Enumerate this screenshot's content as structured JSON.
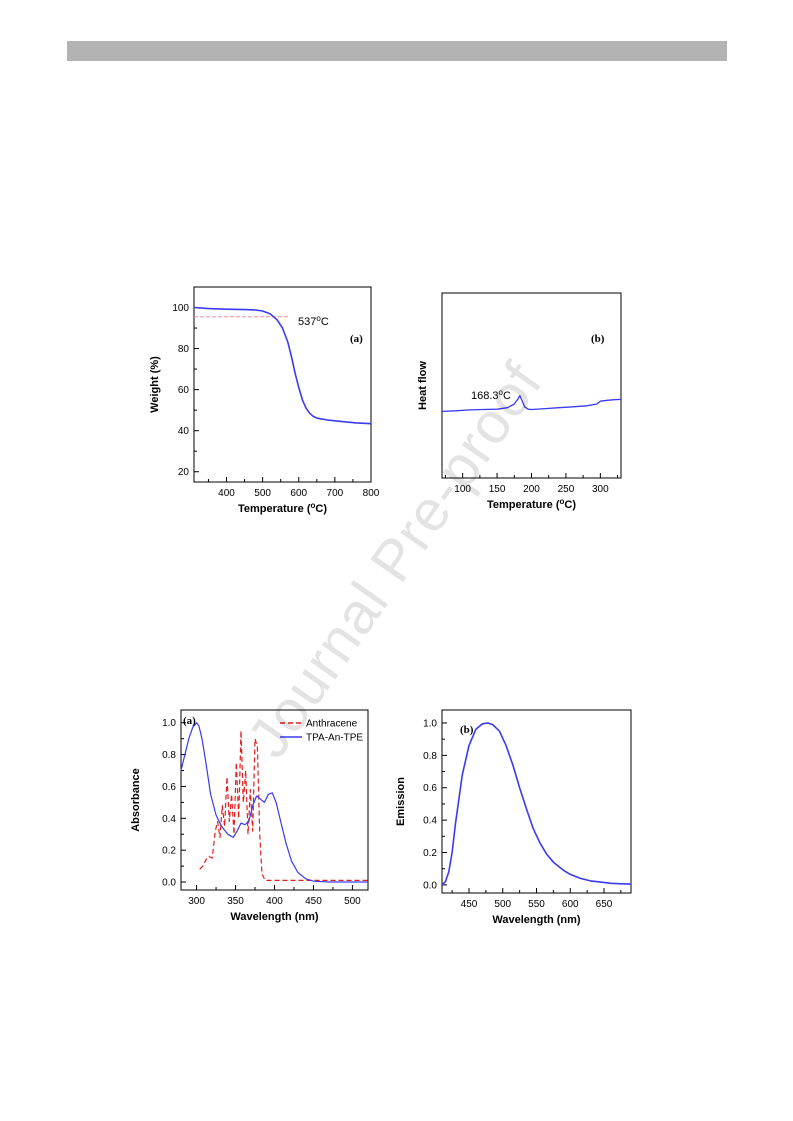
{
  "colors": {
    "header_bar": "#b3b3b3",
    "blue": "#3a3af2",
    "red": "#e61e1e",
    "ref_dash": "#f09090"
  },
  "watermark": "Journal Pre-proof",
  "chart_data": [
    {
      "id": "tga",
      "type": "line",
      "panel_label": "(a)",
      "xlabel": "Temperature (",
      "xlabel_unit": "°C)",
      "ylabel": "Weight (%)",
      "xlim": [
        310,
        800
      ],
      "ylim": [
        15,
        110
      ],
      "xticks": [
        400,
        500,
        600,
        700,
        800
      ],
      "yticks": [
        20,
        40,
        60,
        80,
        100
      ],
      "annotation": "537°C",
      "reference_line": {
        "y": 95.5,
        "x": [
          310,
          570
        ]
      },
      "series": [
        {
          "x": [
            310,
            350,
            400,
            450,
            480,
            500,
            520,
            540,
            555,
            570,
            580,
            590,
            600,
            610,
            620,
            630,
            640,
            650,
            660,
            680,
            700,
            730,
            760,
            800
          ],
          "y": [
            100,
            99.5,
            99.2,
            99,
            98.8,
            98.3,
            97,
            94,
            90,
            83,
            76,
            68,
            61,
            55,
            51,
            48.5,
            47,
            46.2,
            45.8,
            45.2,
            44.8,
            44.3,
            43.8,
            43.4
          ]
        }
      ]
    },
    {
      "id": "dsc",
      "type": "line",
      "panel_label": "(b)",
      "xlabel": "Temperature (",
      "xlabel_unit": "°C)",
      "ylabel": "Heat flow",
      "xlim": [
        70,
        330
      ],
      "ylim": [
        0,
        100
      ],
      "xticks": [
        100,
        150,
        200,
        250,
        300
      ],
      "annotation": "168.3°C",
      "series": [
        {
          "x": [
            70,
            90,
            110,
            130,
            150,
            165,
            175,
            180,
            183,
            186,
            190,
            195,
            200,
            220,
            240,
            260,
            280,
            295,
            300,
            310,
            320,
            330
          ],
          "y": [
            36,
            36.3,
            36.8,
            37,
            37.2,
            38,
            40,
            42.5,
            44.5,
            42,
            38.5,
            37.2,
            37,
            37.5,
            38,
            38.5,
            39,
            40,
            41.5,
            42,
            42.3,
            42.5
          ]
        }
      ]
    },
    {
      "id": "absorbance",
      "type": "line",
      "panel_label": "(a)",
      "xlabel": "Wavelength (nm)",
      "ylabel": "Absorbance",
      "xlim": [
        280,
        520
      ],
      "ylim": [
        -0.05,
        1.08
      ],
      "xticks": [
        300,
        350,
        400,
        450,
        500
      ],
      "yticks": [
        0.0,
        0.2,
        0.4,
        0.6,
        0.8,
        1.0
      ],
      "legend_position": "top-right",
      "series": [
        {
          "name": "Anthracene",
          "style": "dashed",
          "x": [
            304,
            308,
            312,
            316,
            320,
            324,
            327,
            330,
            333,
            336,
            339,
            342,
            345,
            348,
            351,
            354,
            357,
            360,
            363,
            366,
            369,
            372,
            375,
            378,
            381,
            384,
            388,
            395,
            420,
            450,
            520
          ],
          "y": [
            0.08,
            0.1,
            0.14,
            0.16,
            0.15,
            0.32,
            0.38,
            0.28,
            0.48,
            0.35,
            0.66,
            0.38,
            0.55,
            0.3,
            0.75,
            0.4,
            0.95,
            0.5,
            0.7,
            0.3,
            0.58,
            0.32,
            0.9,
            0.85,
            0.3,
            0.05,
            0.01,
            0.01,
            0.01,
            0.01,
            0.01
          ]
        },
        {
          "name": "TPA-An-TPE",
          "style": "solid",
          "x": [
            280,
            285,
            290,
            295,
            300,
            303,
            307,
            312,
            318,
            325,
            332,
            340,
            347,
            352,
            357,
            362,
            367,
            372,
            377,
            382,
            387,
            392,
            397,
            402,
            408,
            415,
            422,
            430,
            440,
            450,
            470,
            500,
            520
          ],
          "y": [
            0.7,
            0.8,
            0.9,
            0.97,
            1.0,
            0.98,
            0.9,
            0.75,
            0.55,
            0.42,
            0.35,
            0.3,
            0.28,
            0.32,
            0.37,
            0.36,
            0.38,
            0.48,
            0.54,
            0.52,
            0.5,
            0.55,
            0.56,
            0.5,
            0.38,
            0.24,
            0.13,
            0.06,
            0.02,
            0.005,
            0.0,
            0.0,
            0.0
          ]
        }
      ]
    },
    {
      "id": "emission",
      "type": "line",
      "panel_label": "(b)",
      "xlabel": "Wavelength (nm)",
      "ylabel": "Emission",
      "xlim": [
        410,
        690
      ],
      "ylim": [
        -0.05,
        1.08
      ],
      "xticks": [
        450,
        500,
        550,
        600,
        650
      ],
      "yticks": [
        0.0,
        0.2,
        0.4,
        0.6,
        0.8,
        1.0
      ],
      "series": [
        {
          "x": [
            410,
            415,
            420,
            425,
            430,
            440,
            450,
            460,
            470,
            478,
            485,
            495,
            505,
            515,
            525,
            535,
            545,
            555,
            565,
            575,
            590,
            600,
            615,
            630,
            645,
            660,
            675,
            690
          ],
          "y": [
            0.0,
            0.02,
            0.08,
            0.2,
            0.38,
            0.68,
            0.86,
            0.96,
            0.995,
            1.0,
            0.99,
            0.95,
            0.86,
            0.74,
            0.6,
            0.47,
            0.35,
            0.26,
            0.19,
            0.14,
            0.09,
            0.065,
            0.04,
            0.025,
            0.017,
            0.01,
            0.007,
            0.005
          ]
        }
      ]
    }
  ]
}
